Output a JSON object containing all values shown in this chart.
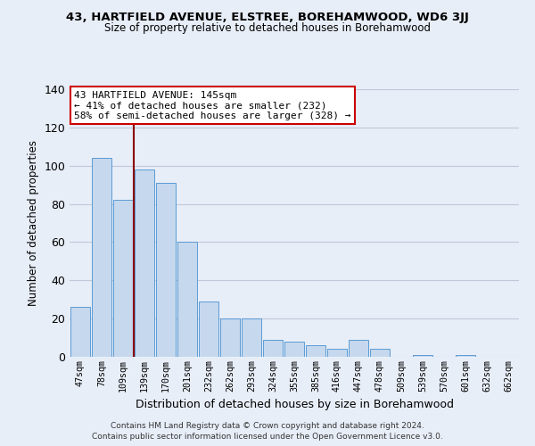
{
  "title": "43, HARTFIELD AVENUE, ELSTREE, BOREHAMWOOD, WD6 3JJ",
  "subtitle": "Size of property relative to detached houses in Borehamwood",
  "xlabel": "Distribution of detached houses by size in Borehamwood",
  "ylabel": "Number of detached properties",
  "bar_labels": [
    "47sqm",
    "78sqm",
    "109sqm",
    "139sqm",
    "170sqm",
    "201sqm",
    "232sqm",
    "262sqm",
    "293sqm",
    "324sqm",
    "355sqm",
    "385sqm",
    "416sqm",
    "447sqm",
    "478sqm",
    "509sqm",
    "539sqm",
    "570sqm",
    "601sqm",
    "632sqm",
    "662sqm"
  ],
  "bar_values": [
    26,
    104,
    82,
    98,
    91,
    60,
    29,
    20,
    20,
    9,
    8,
    6,
    4,
    9,
    4,
    0,
    1,
    0,
    1,
    0,
    0
  ],
  "bar_color": "#c5d8ed",
  "bar_edge_color": "#5b9bd5",
  "vline_x": 3.0,
  "annotation_title": "43 HARTFIELD AVENUE: 145sqm",
  "annotation_line1": "← 41% of detached houses are smaller (232)",
  "annotation_line2": "58% of semi-detached houses are larger (328) →",
  "annotation_box_color": "#ffffff",
  "annotation_box_edgecolor": "#cc0000",
  "vline_color": "#8b0000",
  "ylim": [
    0,
    140
  ],
  "yticks": [
    0,
    20,
    40,
    60,
    80,
    100,
    120,
    140
  ],
  "grid_color": "#c0c8d8",
  "background_color": "#e8eef8",
  "footer1": "Contains HM Land Registry data © Crown copyright and database right 2024.",
  "footer2": "Contains public sector information licensed under the Open Government Licence v3.0."
}
